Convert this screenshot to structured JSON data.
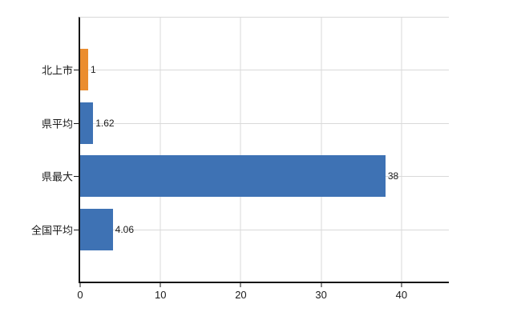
{
  "chart_data": {
    "type": "bar",
    "orientation": "horizontal",
    "title": "",
    "xlabel": "",
    "ylabel": "",
    "categories": [
      "北上市",
      "県平均",
      "県最大",
      "全国平均"
    ],
    "values": [
      1,
      1.62,
      38,
      4.06
    ],
    "value_labels": [
      "1",
      "1.62",
      "38",
      "4.06"
    ],
    "series_colors": [
      "#EB8D2F",
      "#3E72B4",
      "#3E72B4",
      "#3E72B4"
    ],
    "x_ticks": [
      0,
      10,
      20,
      30,
      40
    ],
    "x_tick_labels": [
      "0",
      "10",
      "20",
      "30",
      "40"
    ],
    "xlim": [
      0,
      45.9
    ],
    "grid": true,
    "legend_position": "none"
  },
  "colors": {
    "background": "#ffffff",
    "axis": "#161616",
    "grid": "#d9d9d9",
    "text": "#1a1a1a",
    "highlight_bar": "#EB8D2F",
    "default_bar": "#3E72B4"
  }
}
